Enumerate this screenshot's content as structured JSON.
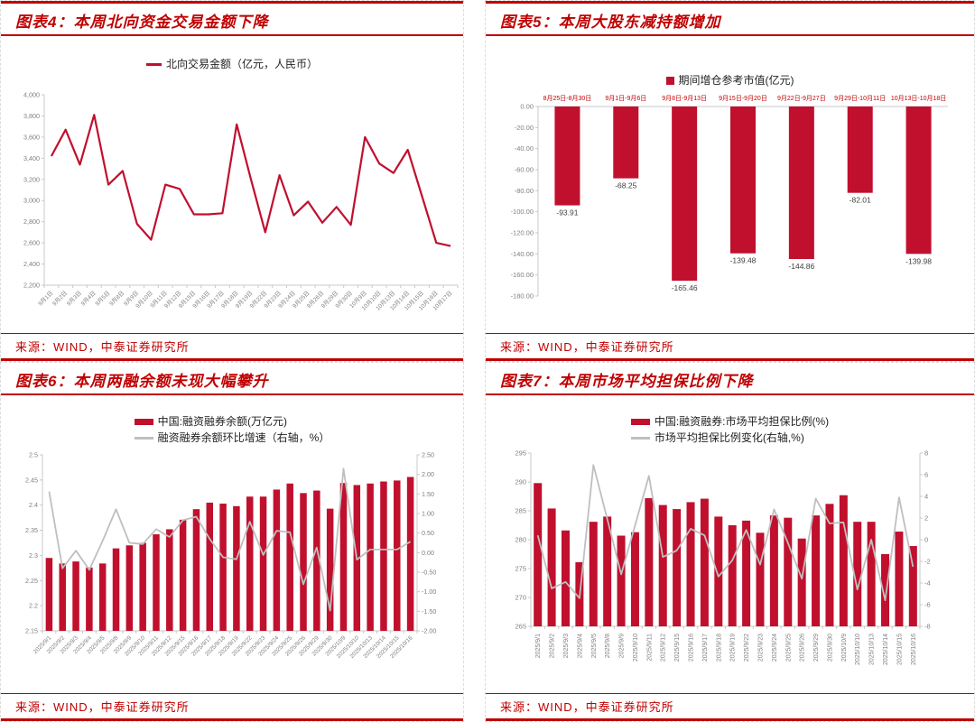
{
  "source_label": "来源：WIND，中泰证券研究所",
  "colors": {
    "title_red": "#C00000",
    "series_red": "#C0102E",
    "series_gray": "#BFBFBF",
    "axis_line": "#C9C9C9",
    "tick_text": "#808080",
    "data_label_text": "#404040",
    "category_red": "#C00000",
    "legend_text": "#1F1F1F",
    "panel_border": "#DCDCDC"
  },
  "chart_data": [
    {
      "id": "fig4",
      "type": "line",
      "title": "图表4：本周北向资金交易金额下降",
      "series": [
        {
          "name": "北向交易金额（亿元，人民币）",
          "type": "line",
          "color": "#C0102E",
          "values": [
            3420,
            3670,
            3340,
            3810,
            3150,
            3280,
            2780,
            2630,
            3150,
            3110,
            2870,
            2870,
            2880,
            3720,
            3200,
            2700,
            3240,
            2860,
            2990,
            2790,
            2940,
            2770,
            3600,
            3350,
            3260,
            3480,
            3040,
            2600,
            2570
          ]
        }
      ],
      "categories": [
        "9月1日",
        "9月2日",
        "9月3日",
        "9月4日",
        "9月5日",
        "9月8日",
        "9月9日",
        "9月10日",
        "9月11日",
        "9月12日",
        "9月15日",
        "9月16日",
        "9月17日",
        "9月18日",
        "9月19日",
        "9月22日",
        "9月23日",
        "9月24日",
        "9月25日",
        "9月26日",
        "9月29日",
        "9月30日",
        "10月9日",
        "10月10日",
        "10月13日",
        "10月14日",
        "10月15日",
        "10月16日",
        "10月17日"
      ],
      "ylim": [
        2200,
        4000
      ],
      "ytick_values": [
        4000,
        3800,
        3600,
        3400,
        3200,
        3000,
        2800,
        2600,
        2400,
        2200
      ],
      "ytick_labels": [
        "4,000",
        "3,800",
        "3,600",
        "3,400",
        "3,200",
        "3,000",
        "2,800",
        "2,600",
        "2,400",
        "2,200"
      ],
      "grid": false,
      "legend_position": "top-center"
    },
    {
      "id": "fig5",
      "type": "bar",
      "title": "图表5：本周大股东减持额增加",
      "series": [
        {
          "name": "期间增仓参考市值(亿元)",
          "type": "bar",
          "color": "#C0102E",
          "values": [
            -93.91,
            -68.25,
            -165.46,
            -139.48,
            -144.86,
            -82.01,
            -139.98
          ]
        }
      ],
      "data_labels": [
        "-93.91",
        "-68.25",
        "-165.46",
        "-139.48",
        "-144.86",
        "-82.01",
        "-139.98"
      ],
      "categories": [
        "8月25日-8月30日",
        "9月1日-9月6日",
        "9月8日-9月13日",
        "9月15日-9月20日",
        "9月22日-9月27日",
        "9月29日-10月11日",
        "10月13日-10月18日"
      ],
      "ylim": [
        -180,
        0
      ],
      "ytick_values": [
        0,
        -20,
        -40,
        -60,
        -80,
        -100,
        -120,
        -140,
        -160,
        -180
      ],
      "ytick_labels": [
        "0.00",
        "-20.00",
        "-40.00",
        "-60.00",
        "-80.00",
        "-100.00",
        "-120.00",
        "-140.00",
        "-160.00",
        "-180.00"
      ],
      "grid": false,
      "legend_position": "top-center"
    },
    {
      "id": "fig6",
      "type": "dual",
      "title": "图表6：本周两融余额未现大幅攀升",
      "series": [
        {
          "name": "中国:融资融券余额(万亿元)",
          "type": "bar",
          "axis": "left",
          "color": "#C0102E",
          "values": [
            2.295,
            2.284,
            2.288,
            2.276,
            2.284,
            2.314,
            2.32,
            2.325,
            2.342,
            2.352,
            2.371,
            2.392,
            2.405,
            2.403,
            2.398,
            2.417,
            2.417,
            2.431,
            2.443,
            2.424,
            2.429,
            2.393,
            2.444,
            2.44,
            2.443,
            2.447,
            2.449,
            2.456
          ]
        },
        {
          "name": "融资融券余额环比增速（右轴，%）",
          "type": "line",
          "axis": "right",
          "color": "#BFBFBF",
          "values": [
            1.56,
            -0.4,
            0.05,
            -0.44,
            0.3,
            1.11,
            0.25,
            0.22,
            0.6,
            0.4,
            0.83,
            0.92,
            0.35,
            -0.12,
            -0.17,
            0.79,
            -0.06,
            0.56,
            0.52,
            -0.81,
            0.13,
            -1.48,
            2.15,
            -0.18,
            0.08,
            0.08,
            0.08,
            0.28
          ]
        }
      ],
      "categories": [
        "2025/9/1",
        "2025/9/2",
        "2025/9/3",
        "2025/9/4",
        "2025/9/5",
        "2025/9/8",
        "2025/9/9",
        "2025/9/10",
        "2025/9/11",
        "2025/9/12",
        "2025/9/15",
        "2025/9/16",
        "2025/9/17",
        "2025/9/18",
        "2025/9/19",
        "2025/9/22",
        "2025/9/23",
        "2025/9/24",
        "2025/9/25",
        "2025/9/26",
        "2025/9/29",
        "2025/9/30",
        "2025/10/9",
        "2025/10/10",
        "2025/10/13",
        "2025/10/14",
        "2025/10/15",
        "2025/10/16"
      ],
      "ylim_left": [
        2.15,
        2.5
      ],
      "ytick_left_values": [
        2.5,
        2.45,
        2.4,
        2.35,
        2.3,
        2.25,
        2.2,
        2.15
      ],
      "ytick_left_labels": [
        "2.5",
        "2.45",
        "2.4",
        "2.35",
        "2.3",
        "2.25",
        "2.2",
        "2.15"
      ],
      "ylim_right": [
        -2.0,
        2.5
      ],
      "ytick_right_values": [
        2.5,
        2.0,
        1.5,
        1.0,
        0.5,
        0.0,
        -0.5,
        -1.0,
        -1.5,
        -2.0
      ],
      "ytick_right_labels": [
        "2.50",
        "2.00",
        "1.50",
        "1.00",
        "0.50",
        "0.00",
        "-0.50",
        "-1.00",
        "-1.50",
        "-2.00"
      ],
      "grid": false,
      "legend_position": "top-center"
    },
    {
      "id": "fig7",
      "type": "dual",
      "title": "图表7：本周市场平均担保比例下降",
      "series": [
        {
          "name": "中国:融资融券:市场平均担保比例(%)",
          "type": "bar",
          "axis": "left",
          "color": "#C0102E",
          "values": [
            289.8,
            285.4,
            281.6,
            276.1,
            283.1,
            284.0,
            280.7,
            281.3,
            287.2,
            286.0,
            285.3,
            286.5,
            287.1,
            284.0,
            282.5,
            283.3,
            281.2,
            284.2,
            283.8,
            280.2,
            284.2,
            286.2,
            287.7,
            283.1,
            283.1,
            277.5,
            281.4,
            278.9
          ]
        },
        {
          "name": "市场平均担保比例变化(右轴,%)",
          "type": "line",
          "axis": "right",
          "color": "#BFBFBF",
          "values": [
            0.4,
            -4.5,
            -3.9,
            -5.4,
            6.9,
            1.9,
            -3.2,
            1.3,
            5.9,
            -1.6,
            -1.0,
            1.0,
            0.4,
            -3.4,
            -1.9,
            0.9,
            -2.3,
            2.8,
            -0.3,
            -3.6,
            3.8,
            1.5,
            1.6,
            -4.6,
            0.0,
            -5.6,
            3.9,
            -2.5
          ]
        }
      ],
      "categories": [
        "2025/9/1",
        "2025/9/2",
        "2025/9/3",
        "2025/9/4",
        "2025/9/5",
        "2025/9/8",
        "2025/9/9",
        "2025/9/10",
        "2025/9/11",
        "2025/9/12",
        "2025/9/15",
        "2025/9/16",
        "2025/9/17",
        "2025/9/18",
        "2025/9/19",
        "2025/9/22",
        "2025/9/23",
        "2025/9/24",
        "2025/9/25",
        "2025/9/26",
        "2025/9/29",
        "2025/9/30",
        "2025/10/9",
        "2025/10/10",
        "2025/10/13",
        "2025/10/14",
        "2025/10/15",
        "2025/10/16"
      ],
      "ylim_left": [
        265,
        295
      ],
      "ytick_left_values": [
        295,
        290,
        285,
        280,
        275,
        270,
        265
      ],
      "ytick_left_labels": [
        "295",
        "290",
        "285",
        "280",
        "275",
        "270",
        "265"
      ],
      "ylim_right": [
        -8,
        8
      ],
      "ytick_right_values": [
        8,
        6,
        4,
        2,
        0,
        -2,
        -4,
        -6,
        -8
      ],
      "ytick_right_labels": [
        "8",
        "6",
        "4",
        "2",
        "0",
        "-2",
        "-4",
        "-6",
        "-8"
      ],
      "grid": false,
      "legend_position": "top-center"
    }
  ]
}
